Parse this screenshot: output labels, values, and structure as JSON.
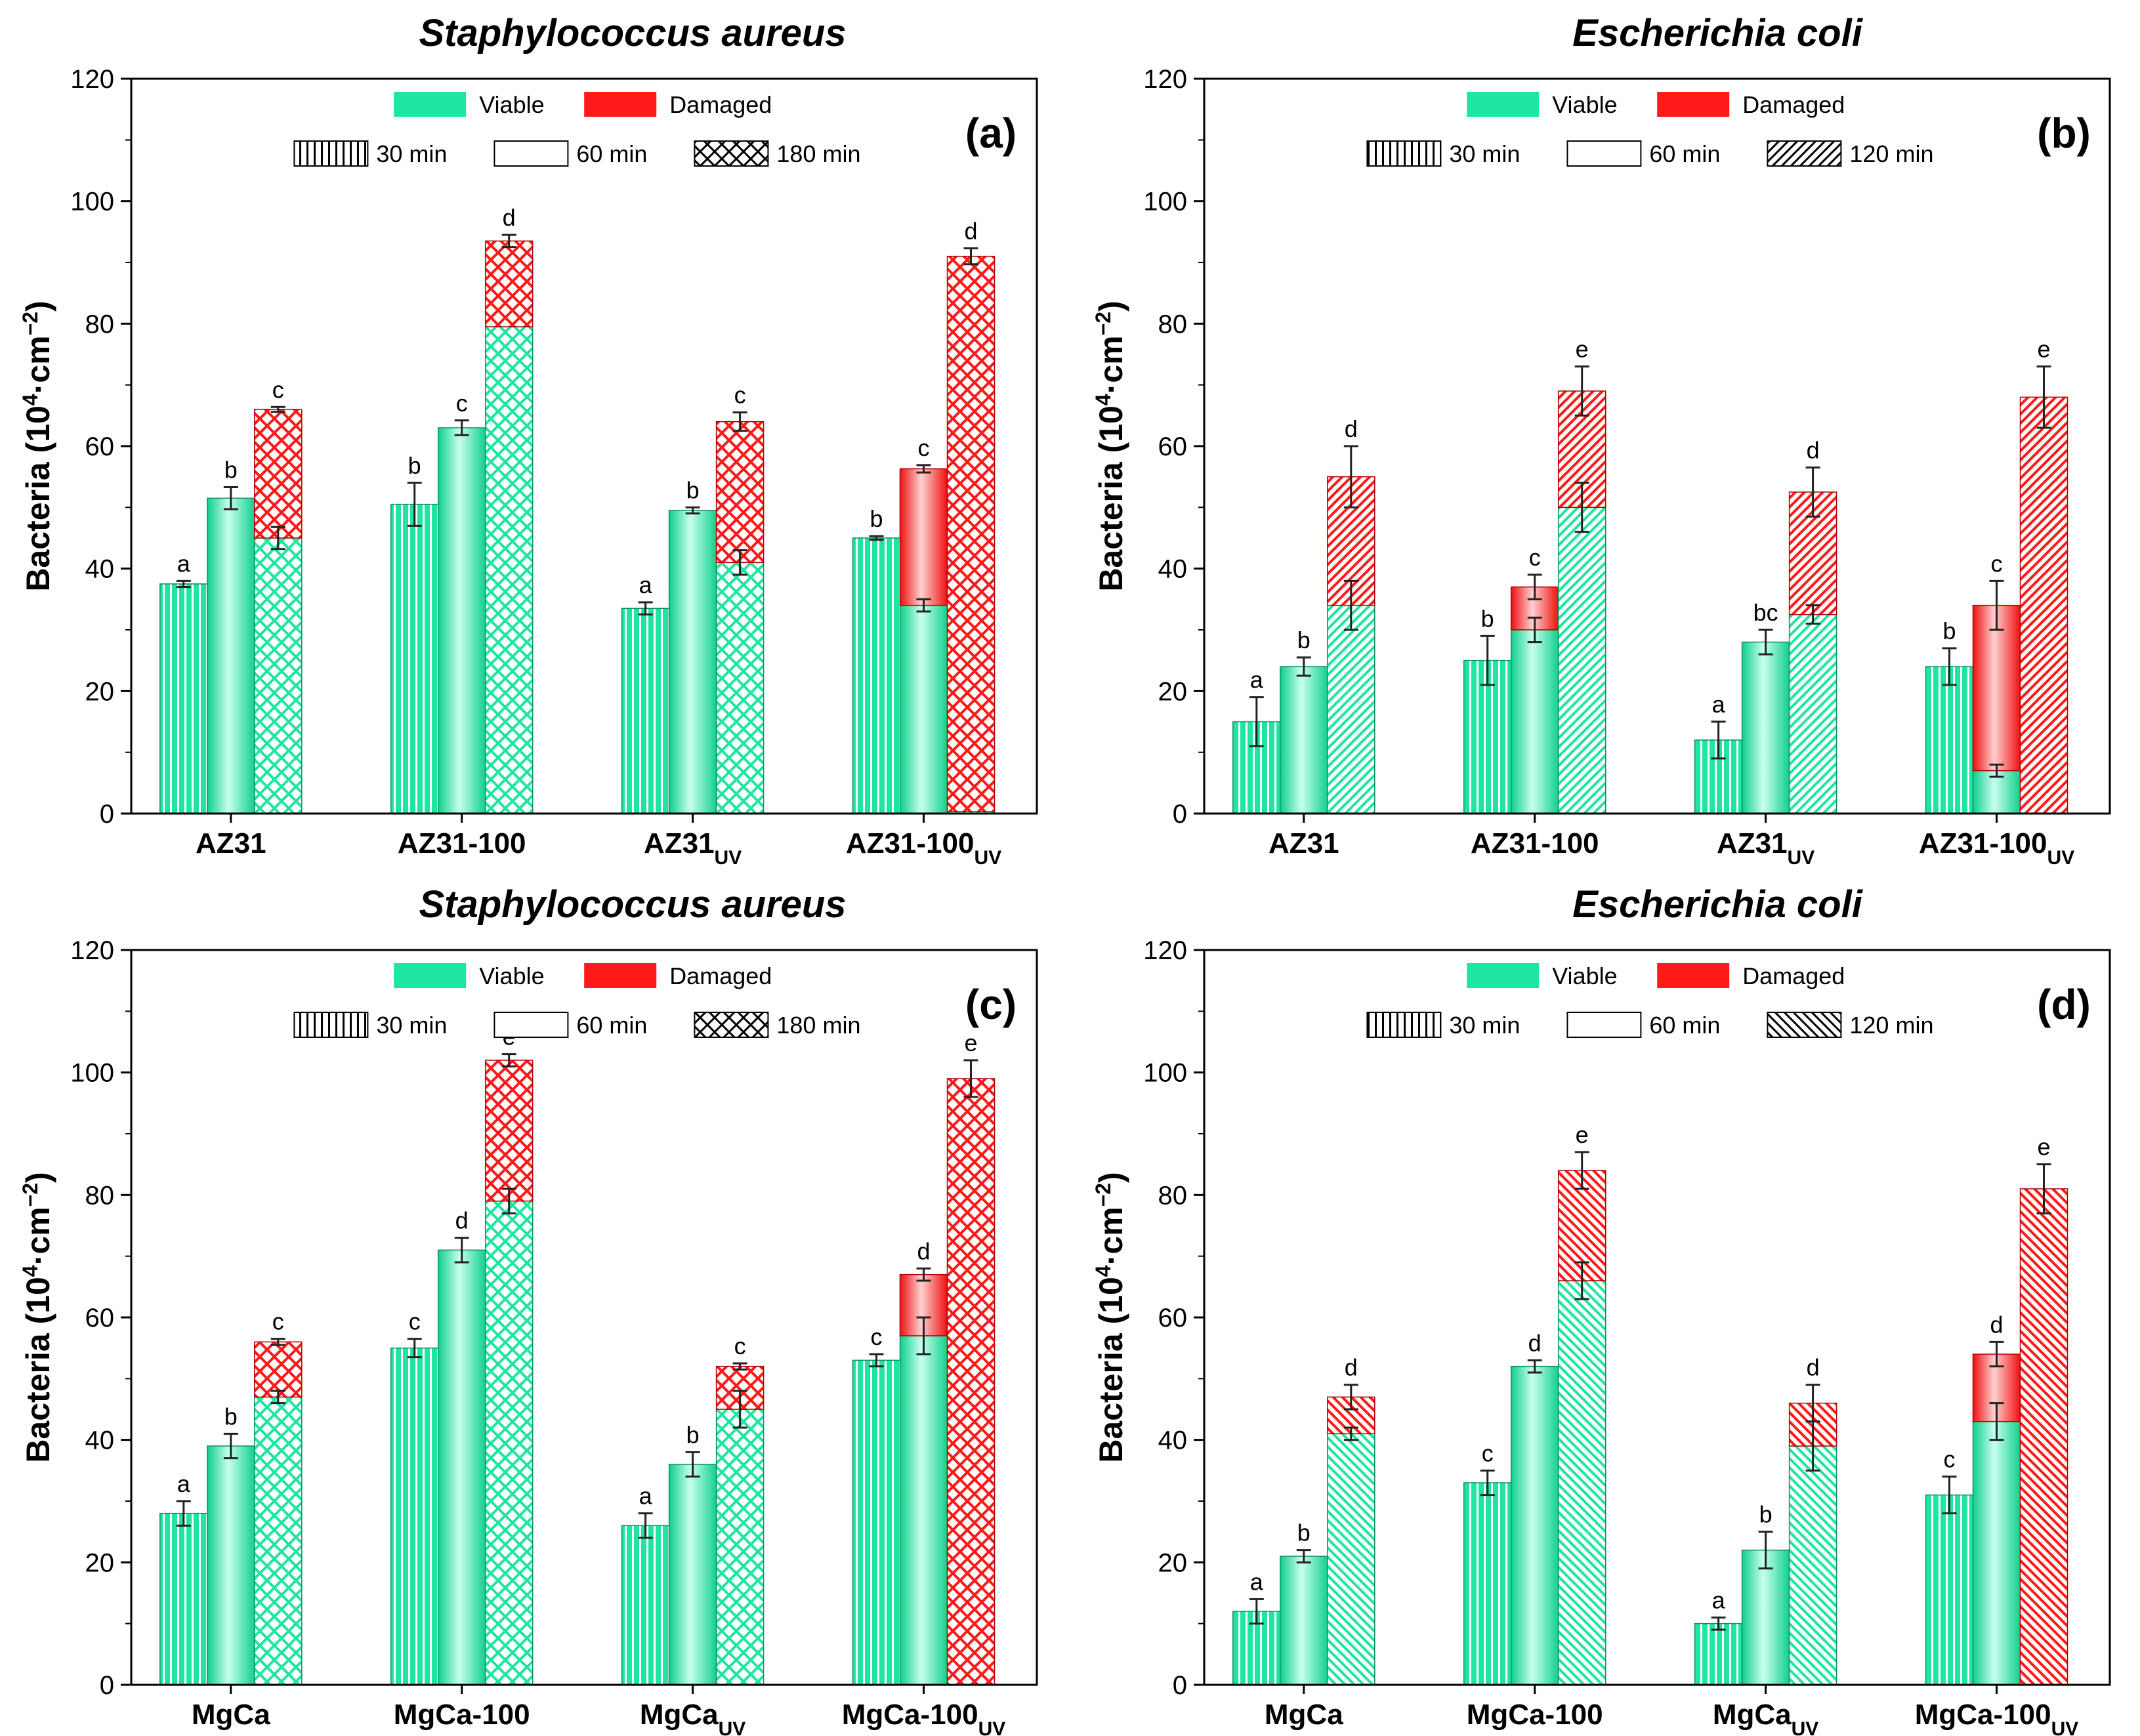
{
  "colors": {
    "viable": "#1ee6a0",
    "viable_edge": "#0f8f63",
    "damaged": "#ff1a1a",
    "damaged_edge": "#b00000",
    "axis": "#000000",
    "error_bar": "#222222"
  },
  "legend": {
    "viable_label": "Viable",
    "damaged_label": "Damaged"
  },
  "chart_data": [
    {
      "panel": "(a)",
      "type": "bar",
      "title": "Staphylococcus aureus",
      "ylabel": "Bacteria (10^4·cm^-2)",
      "ylabel_base": "Bacteria (10",
      "ylabel_exp1": "4",
      "ylabel_mid": "·cm",
      "ylabel_exp2": "−2",
      "ylabel_end": ")",
      "ylim": [
        0,
        120
      ],
      "yticks": [
        "0",
        "20",
        "40",
        "60",
        "80",
        "100",
        "120"
      ],
      "time_labels": [
        "30 min",
        "60 min",
        "180 min"
      ],
      "time_patterns": [
        "vlines",
        "solid",
        "crosshatch"
      ],
      "categories": [
        {
          "base": "AZ31",
          "sub": ""
        },
        {
          "base": "AZ31-100",
          "sub": ""
        },
        {
          "base": "AZ31",
          "sub": "UV"
        },
        {
          "base": "AZ31-100",
          "sub": "UV"
        }
      ],
      "bars": [
        [
          {
            "viable": 37.5,
            "damaged": 0,
            "err": 0.5,
            "letter": "a"
          },
          {
            "viable": 51.5,
            "damaged": 0,
            "err": 1.8,
            "letter": "b"
          },
          {
            "viable": 45,
            "damaged": 21,
            "err": 0.4,
            "verr": 1.8,
            "letter": "c"
          }
        ],
        [
          {
            "viable": 50.5,
            "damaged": 0,
            "err": 3.5,
            "letter": "b"
          },
          {
            "viable": 63,
            "damaged": 0,
            "err": 1.2,
            "letter": "c"
          },
          {
            "viable": 79.5,
            "damaged": 14,
            "err": 1,
            "letter": "d"
          }
        ],
        [
          {
            "viable": 33.5,
            "damaged": 0,
            "err": 1,
            "letter": "a"
          },
          {
            "viable": 49.5,
            "damaged": 0,
            "err": 0.5,
            "letter": "b"
          },
          {
            "viable": 41,
            "damaged": 23,
            "err": 1.5,
            "verr": 2,
            "letter": "c"
          }
        ],
        [
          {
            "viable": 45,
            "damaged": 0,
            "err": 0.3,
            "letter": "b"
          },
          {
            "viable": 34,
            "damaged": 22.3,
            "err": 0.6,
            "verr": 1,
            "letter": "c"
          },
          {
            "viable": 0.3,
            "damaged": 90.7,
            "err": 1.3,
            "letter": "d"
          }
        ]
      ]
    },
    {
      "panel": "(b)",
      "type": "bar",
      "title": "Escherichia coli",
      "ylabel": "Bacteria (10^4·cm^-2)",
      "ylabel_base": "Bacteria (10",
      "ylabel_exp1": "4",
      "ylabel_mid": "·cm",
      "ylabel_exp2": "−2",
      "ylabel_end": ")",
      "ylim": [
        0,
        120
      ],
      "yticks": [
        "0",
        "20",
        "40",
        "60",
        "80",
        "100",
        "120"
      ],
      "time_labels": [
        "30 min",
        "60 min",
        "120 min"
      ],
      "time_patterns": [
        "vlines",
        "solid",
        "diag_right"
      ],
      "categories": [
        {
          "base": "AZ31",
          "sub": ""
        },
        {
          "base": "AZ31-100",
          "sub": ""
        },
        {
          "base": "AZ31",
          "sub": "UV"
        },
        {
          "base": "AZ31-100",
          "sub": "UV"
        }
      ],
      "bars": [
        [
          {
            "viable": 15,
            "damaged": 0,
            "err": 4,
            "letter": "a"
          },
          {
            "viable": 24,
            "damaged": 0,
            "err": 1.5,
            "letter": "b"
          },
          {
            "viable": 34,
            "damaged": 21,
            "err": 5,
            "verr": 4,
            "letter": "d"
          }
        ],
        [
          {
            "viable": 25,
            "damaged": 0,
            "err": 4,
            "letter": "b"
          },
          {
            "viable": 30,
            "damaged": 7,
            "err": 2,
            "verr": 2,
            "letter": "c"
          },
          {
            "viable": 50,
            "damaged": 19,
            "err": 4,
            "verr": 4,
            "letter": "e"
          }
        ],
        [
          {
            "viable": 12,
            "damaged": 0,
            "err": 3,
            "letter": "a"
          },
          {
            "viable": 28,
            "damaged": 0,
            "err": 2,
            "letter": "bc"
          },
          {
            "viable": 32.5,
            "damaged": 20,
            "err": 4,
            "verr": 1.5,
            "letter": "d"
          }
        ],
        [
          {
            "viable": 24,
            "damaged": 0,
            "err": 3,
            "letter": "b"
          },
          {
            "viable": 7,
            "damaged": 27,
            "err": 4,
            "verr": 1,
            "letter": "c"
          },
          {
            "viable": 0,
            "damaged": 68,
            "err": 5,
            "letter": "e"
          }
        ]
      ]
    },
    {
      "panel": "(c)",
      "type": "bar",
      "title": "Staphylococcus aureus",
      "ylabel": "Bacteria (10^4·cm^-2)",
      "ylabel_base": "Bacteria (10",
      "ylabel_exp1": "4",
      "ylabel_mid": "·cm",
      "ylabel_exp2": "−2",
      "ylabel_end": ")",
      "ylim": [
        0,
        120
      ],
      "yticks": [
        "0",
        "20",
        "40",
        "60",
        "80",
        "100",
        "120"
      ],
      "time_labels": [
        "30 min",
        "60 min",
        "180 min"
      ],
      "time_patterns": [
        "vlines",
        "solid",
        "crosshatch"
      ],
      "categories": [
        {
          "base": "MgCa",
          "sub": ""
        },
        {
          "base": "MgCa-100",
          "sub": ""
        },
        {
          "base": "MgCa",
          "sub": "UV"
        },
        {
          "base": "MgCa-100",
          "sub": "UV"
        }
      ],
      "bars": [
        [
          {
            "viable": 28,
            "damaged": 0,
            "err": 2,
            "letter": "a"
          },
          {
            "viable": 39,
            "damaged": 0,
            "err": 2,
            "letter": "b"
          },
          {
            "viable": 47,
            "damaged": 9,
            "err": 0.5,
            "verr": 1,
            "letter": "c"
          }
        ],
        [
          {
            "viable": 55,
            "damaged": 0,
            "err": 1.5,
            "letter": "c"
          },
          {
            "viable": 71,
            "damaged": 0,
            "err": 2,
            "letter": "d"
          },
          {
            "viable": 79,
            "damaged": 23,
            "err": 1,
            "verr": 2,
            "letter": "e"
          }
        ],
        [
          {
            "viable": 26,
            "damaged": 0,
            "err": 2,
            "letter": "a"
          },
          {
            "viable": 36,
            "damaged": 0,
            "err": 2,
            "letter": "b"
          },
          {
            "viable": 45,
            "damaged": 7,
            "err": 0.5,
            "verr": 3,
            "letter": "c"
          }
        ],
        [
          {
            "viable": 53,
            "damaged": 0,
            "err": 1,
            "letter": "c"
          },
          {
            "viable": 57,
            "damaged": 10,
            "err": 1,
            "verr": 3,
            "letter": "d"
          },
          {
            "viable": 0,
            "damaged": 99,
            "err": 3,
            "letter": "e"
          }
        ]
      ]
    },
    {
      "panel": "(d)",
      "type": "bar",
      "title": "Escherichia coli",
      "ylabel": "Bacteria (10^4·cm^-2)",
      "ylabel_base": "Bacteria (10",
      "ylabel_exp1": "4",
      "ylabel_mid": "·cm",
      "ylabel_exp2": "−2",
      "ylabel_end": ")",
      "ylim": [
        0,
        120
      ],
      "yticks": [
        "0",
        "20",
        "40",
        "60",
        "80",
        "100",
        "120"
      ],
      "time_labels": [
        "30 min",
        "60 min",
        "120 min"
      ],
      "time_patterns": [
        "vlines",
        "solid",
        "diag_left"
      ],
      "categories": [
        {
          "base": "MgCa",
          "sub": ""
        },
        {
          "base": "MgCa-100",
          "sub": ""
        },
        {
          "base": "MgCa",
          "sub": "UV"
        },
        {
          "base": "MgCa-100",
          "sub": "UV"
        }
      ],
      "bars": [
        [
          {
            "viable": 12,
            "damaged": 0,
            "err": 2,
            "letter": "a"
          },
          {
            "viable": 21,
            "damaged": 0,
            "err": 1,
            "letter": "b"
          },
          {
            "viable": 41,
            "damaged": 6,
            "err": 2,
            "verr": 1,
            "letter": "d"
          }
        ],
        [
          {
            "viable": 33,
            "damaged": 0,
            "err": 2,
            "letter": "c"
          },
          {
            "viable": 52,
            "damaged": 0,
            "err": 1,
            "letter": "d"
          },
          {
            "viable": 66,
            "damaged": 18,
            "err": 3,
            "verr": 3,
            "letter": "e"
          }
        ],
        [
          {
            "viable": 10,
            "damaged": 0,
            "err": 1,
            "letter": "a"
          },
          {
            "viable": 22,
            "damaged": 0,
            "err": 3,
            "letter": "b"
          },
          {
            "viable": 39,
            "damaged": 7,
            "err": 3,
            "verr": 4,
            "letter": "d"
          }
        ],
        [
          {
            "viable": 31,
            "damaged": 0,
            "err": 3,
            "letter": "c"
          },
          {
            "viable": 43,
            "damaged": 11,
            "err": 2,
            "verr": 3,
            "letter": "d"
          },
          {
            "viable": 0,
            "damaged": 81,
            "err": 4,
            "letter": "e"
          }
        ]
      ]
    }
  ]
}
